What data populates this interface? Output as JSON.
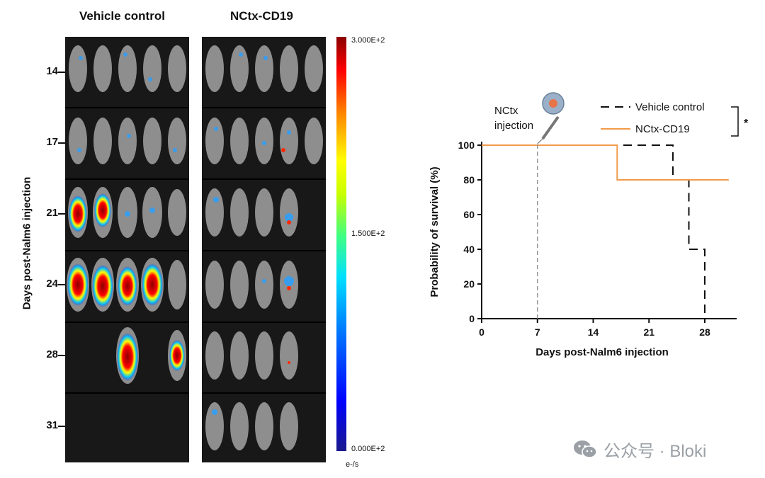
{
  "imaging": {
    "groups": [
      "Vehicle control",
      "NCtx-CD19"
    ],
    "y_axis_label": "Days post-Nalm6 injection",
    "days": [
      "14",
      "17",
      "21",
      "24",
      "28",
      "31"
    ],
    "colorbar": {
      "max": "3.000E+2",
      "mid": "1.500E+2",
      "min": "0.000E+2",
      "unit": "e-/s"
    }
  },
  "chart_data": {
    "type": "line",
    "title": "",
    "xlabel": "Days post-Nalm6 injection",
    "ylabel": "Probability of survival (%)",
    "xlim": [
      0,
      32
    ],
    "ylim": [
      0,
      100
    ],
    "xticks": [
      0,
      7,
      14,
      21,
      28
    ],
    "yticks": [
      0,
      20,
      40,
      60,
      80,
      100
    ],
    "series": [
      {
        "name": "Vehicle control",
        "style": "dashed",
        "color": "#111111",
        "x": [
          0,
          24,
          24,
          26,
          26,
          28,
          28
        ],
        "y": [
          100,
          100,
          80,
          80,
          40,
          40,
          0
        ]
      },
      {
        "name": "NCtx-CD19",
        "style": "solid",
        "color": "#f39a4a",
        "x": [
          0,
          17,
          17,
          31
        ],
        "y": [
          100,
          100,
          80,
          80
        ]
      }
    ],
    "annotation": {
      "x": 7,
      "text_line1": "NCtx",
      "text_line2": "injection"
    },
    "significance": "*"
  },
  "watermark": {
    "text": "公众号 · Bloki",
    "icon": "wechat-icon"
  }
}
